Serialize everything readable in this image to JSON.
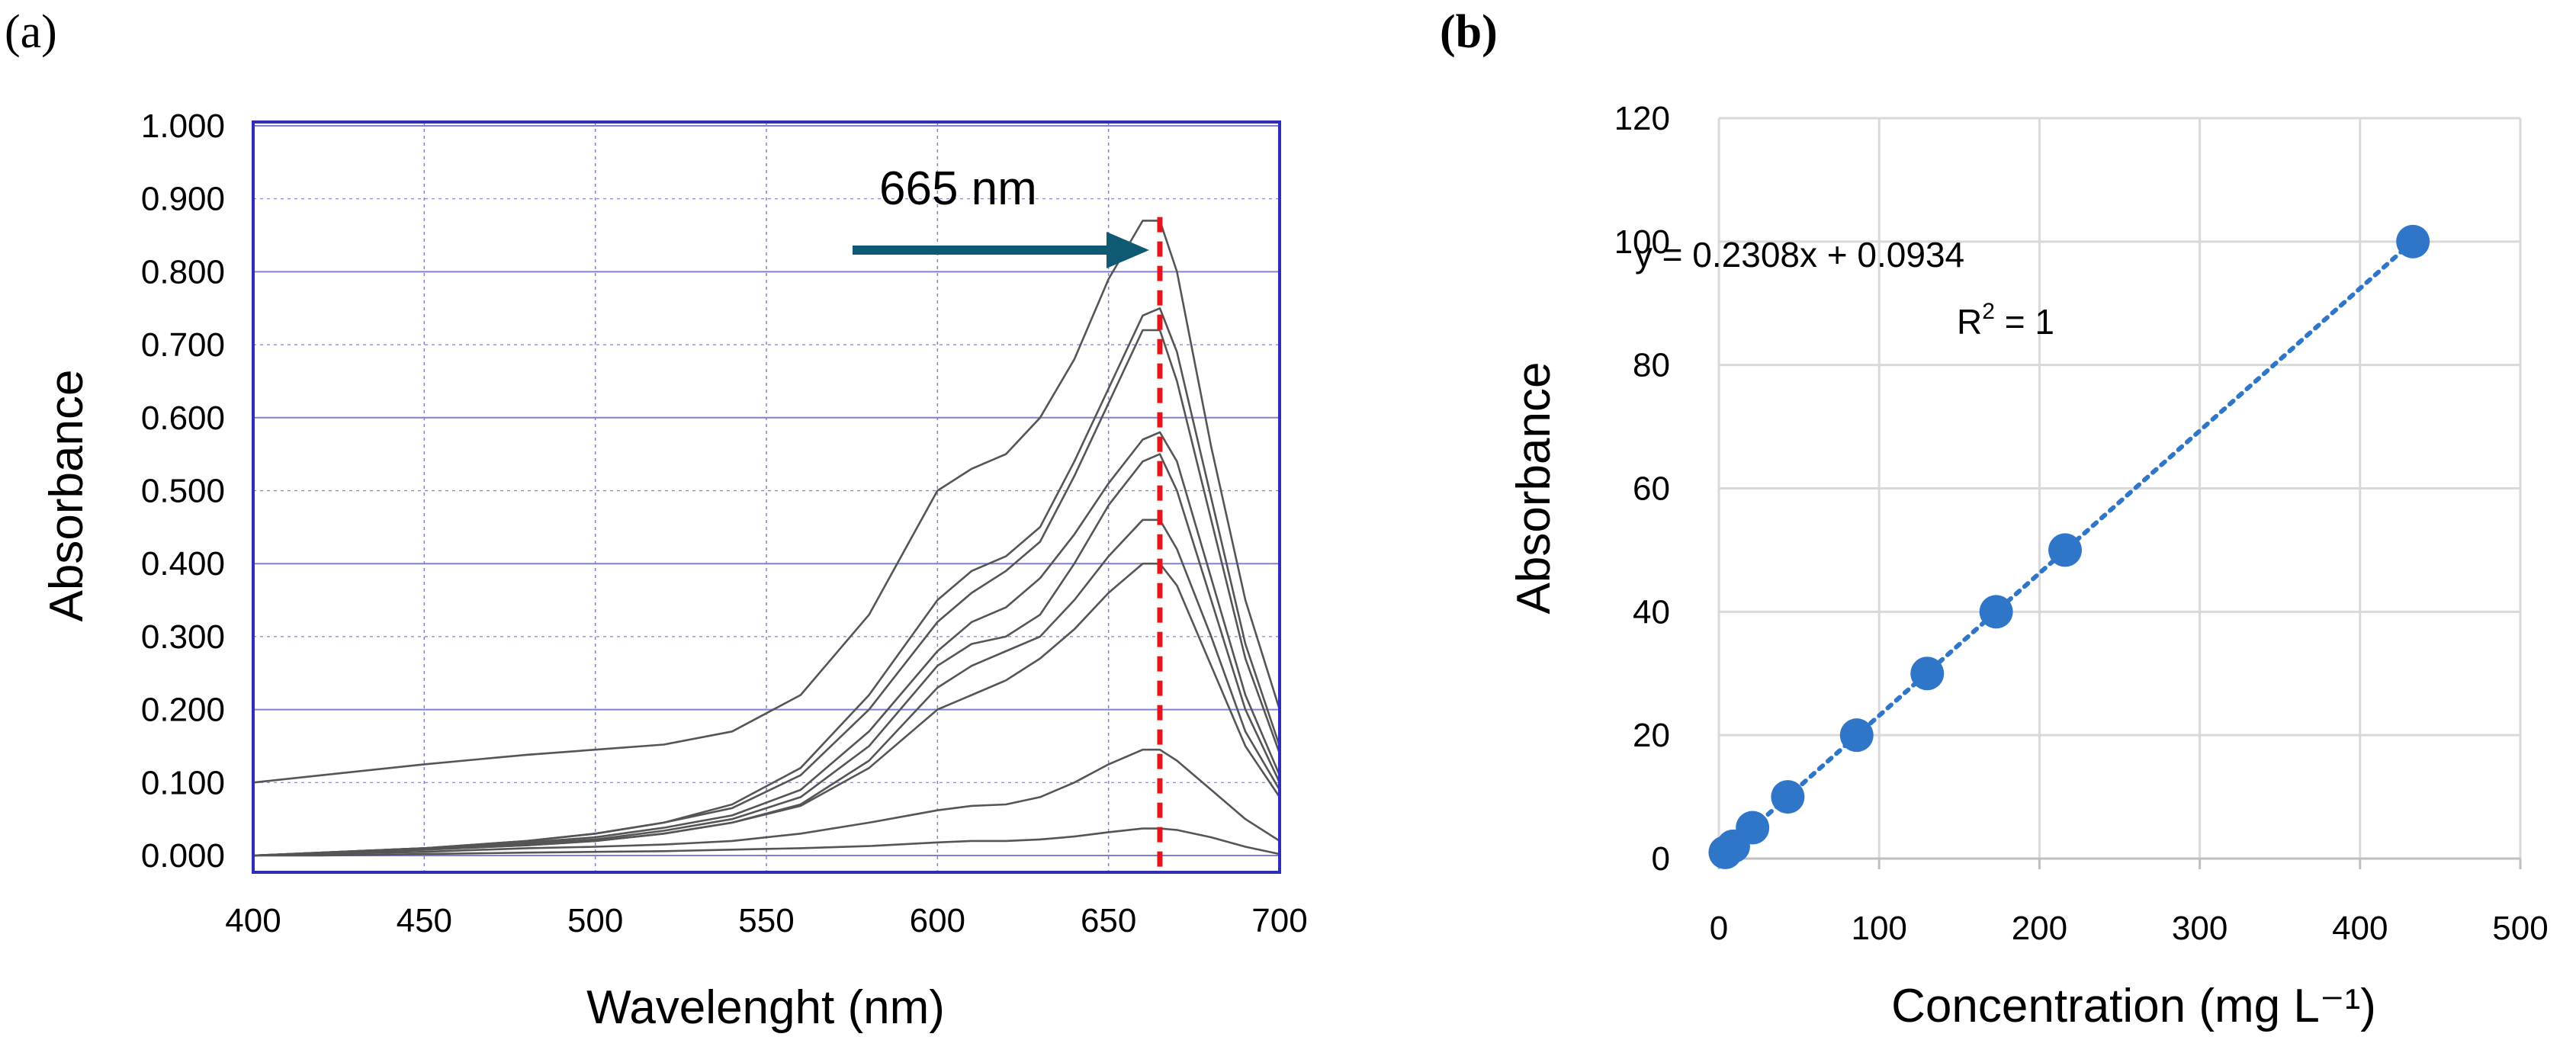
{
  "chart_data": [
    {
      "panel_label": "(a)",
      "type": "line",
      "title": "",
      "xlabel": "Wavelenght (nm)",
      "ylabel": "Absorbance",
      "xlim": [
        400,
        700
      ],
      "ylim": [
        0.0,
        1.0
      ],
      "x_ticks": [
        "400",
        "450",
        "500",
        "550",
        "600",
        "650",
        "700"
      ],
      "y_ticks": [
        "0.000",
        "0.100",
        "0.200",
        "0.300",
        "0.400",
        "0.500",
        "0.600",
        "0.700",
        "0.800",
        "0.900",
        "1.000"
      ],
      "grid": true,
      "annotation": {
        "text": "665 nm",
        "x": 665
      },
      "colors": {
        "frame": "#2e2eb8",
        "grid": "#8080d0",
        "lines": "#555555",
        "marker_line": "#e8141c",
        "arrow": "#0f5a73"
      },
      "x": [
        400,
        420,
        450,
        480,
        500,
        520,
        540,
        560,
        580,
        600,
        610,
        620,
        630,
        640,
        650,
        660,
        665,
        670,
        680,
        690,
        700
      ],
      "series": [
        {
          "values": [
            0.1,
            0.11,
            0.125,
            0.138,
            0.145,
            0.152,
            0.17,
            0.22,
            0.33,
            0.5,
            0.53,
            0.55,
            0.6,
            0.68,
            0.79,
            0.87,
            0.87,
            0.8,
            0.56,
            0.35,
            0.2
          ]
        },
        {
          "values": [
            0.0,
            0.004,
            0.01,
            0.02,
            0.03,
            0.045,
            0.07,
            0.12,
            0.22,
            0.35,
            0.39,
            0.41,
            0.45,
            0.54,
            0.64,
            0.74,
            0.75,
            0.69,
            0.49,
            0.29,
            0.15
          ]
        },
        {
          "values": [
            0.0,
            0.004,
            0.01,
            0.02,
            0.03,
            0.045,
            0.065,
            0.11,
            0.2,
            0.32,
            0.36,
            0.39,
            0.43,
            0.52,
            0.62,
            0.72,
            0.72,
            0.65,
            0.46,
            0.27,
            0.14
          ]
        },
        {
          "values": [
            0.0,
            0.004,
            0.01,
            0.018,
            0.025,
            0.038,
            0.055,
            0.09,
            0.17,
            0.28,
            0.32,
            0.34,
            0.38,
            0.44,
            0.51,
            0.57,
            0.58,
            0.54,
            0.38,
            0.22,
            0.11
          ]
        },
        {
          "values": [
            0.0,
            0.003,
            0.009,
            0.016,
            0.022,
            0.034,
            0.05,
            0.08,
            0.15,
            0.26,
            0.29,
            0.3,
            0.33,
            0.4,
            0.48,
            0.54,
            0.55,
            0.5,
            0.35,
            0.2,
            0.1
          ]
        },
        {
          "values": [
            0.0,
            0.003,
            0.008,
            0.014,
            0.02,
            0.03,
            0.045,
            0.07,
            0.13,
            0.23,
            0.26,
            0.28,
            0.3,
            0.35,
            0.41,
            0.46,
            0.46,
            0.42,
            0.3,
            0.17,
            0.09
          ]
        },
        {
          "values": [
            0.0,
            0.003,
            0.008,
            0.014,
            0.02,
            0.03,
            0.045,
            0.068,
            0.12,
            0.2,
            0.22,
            0.24,
            0.27,
            0.31,
            0.36,
            0.4,
            0.4,
            0.37,
            0.26,
            0.15,
            0.08
          ]
        },
        {
          "values": [
            0.0,
            0.002,
            0.005,
            0.01,
            0.012,
            0.015,
            0.02,
            0.03,
            0.045,
            0.062,
            0.068,
            0.07,
            0.08,
            0.1,
            0.125,
            0.145,
            0.145,
            0.13,
            0.09,
            0.05,
            0.02
          ]
        },
        {
          "values": [
            0.0,
            0.0,
            0.002,
            0.004,
            0.005,
            0.006,
            0.008,
            0.01,
            0.013,
            0.018,
            0.02,
            0.02,
            0.022,
            0.026,
            0.032,
            0.037,
            0.037,
            0.035,
            0.025,
            0.012,
            0.002
          ]
        }
      ]
    },
    {
      "panel_label": "(b)",
      "type": "scatter",
      "title": "",
      "xlabel": "Concentration (mg L⁻¹)",
      "ylabel": "Absorbance",
      "xlim": [
        0,
        500
      ],
      "ylim": [
        0,
        120
      ],
      "x_ticks": [
        "0",
        "100",
        "200",
        "300",
        "400",
        "500"
      ],
      "y_ticks": [
        "0",
        "20",
        "40",
        "60",
        "80",
        "100",
        "120"
      ],
      "grid": true,
      "trendline": {
        "slope": 0.2308,
        "intercept": 0.0934,
        "style": "dotted"
      },
      "equation": "y = 0.2308x + 0.0934",
      "r2_label": "R",
      "r2_sup": "2",
      "r2_value": " = 1",
      "colors": {
        "points": "#2f75c8",
        "trend": "#2f75c8",
        "grid": "#d9d9d9",
        "axis": "#bfbfbf"
      },
      "points": [
        {
          "x": 4,
          "y": 1
        },
        {
          "x": 9,
          "y": 2
        },
        {
          "x": 21,
          "y": 5
        },
        {
          "x": 43,
          "y": 10
        },
        {
          "x": 86,
          "y": 20
        },
        {
          "x": 130,
          "y": 30
        },
        {
          "x": 173,
          "y": 40
        },
        {
          "x": 216,
          "y": 50
        },
        {
          "x": 433,
          "y": 100
        }
      ]
    }
  ]
}
